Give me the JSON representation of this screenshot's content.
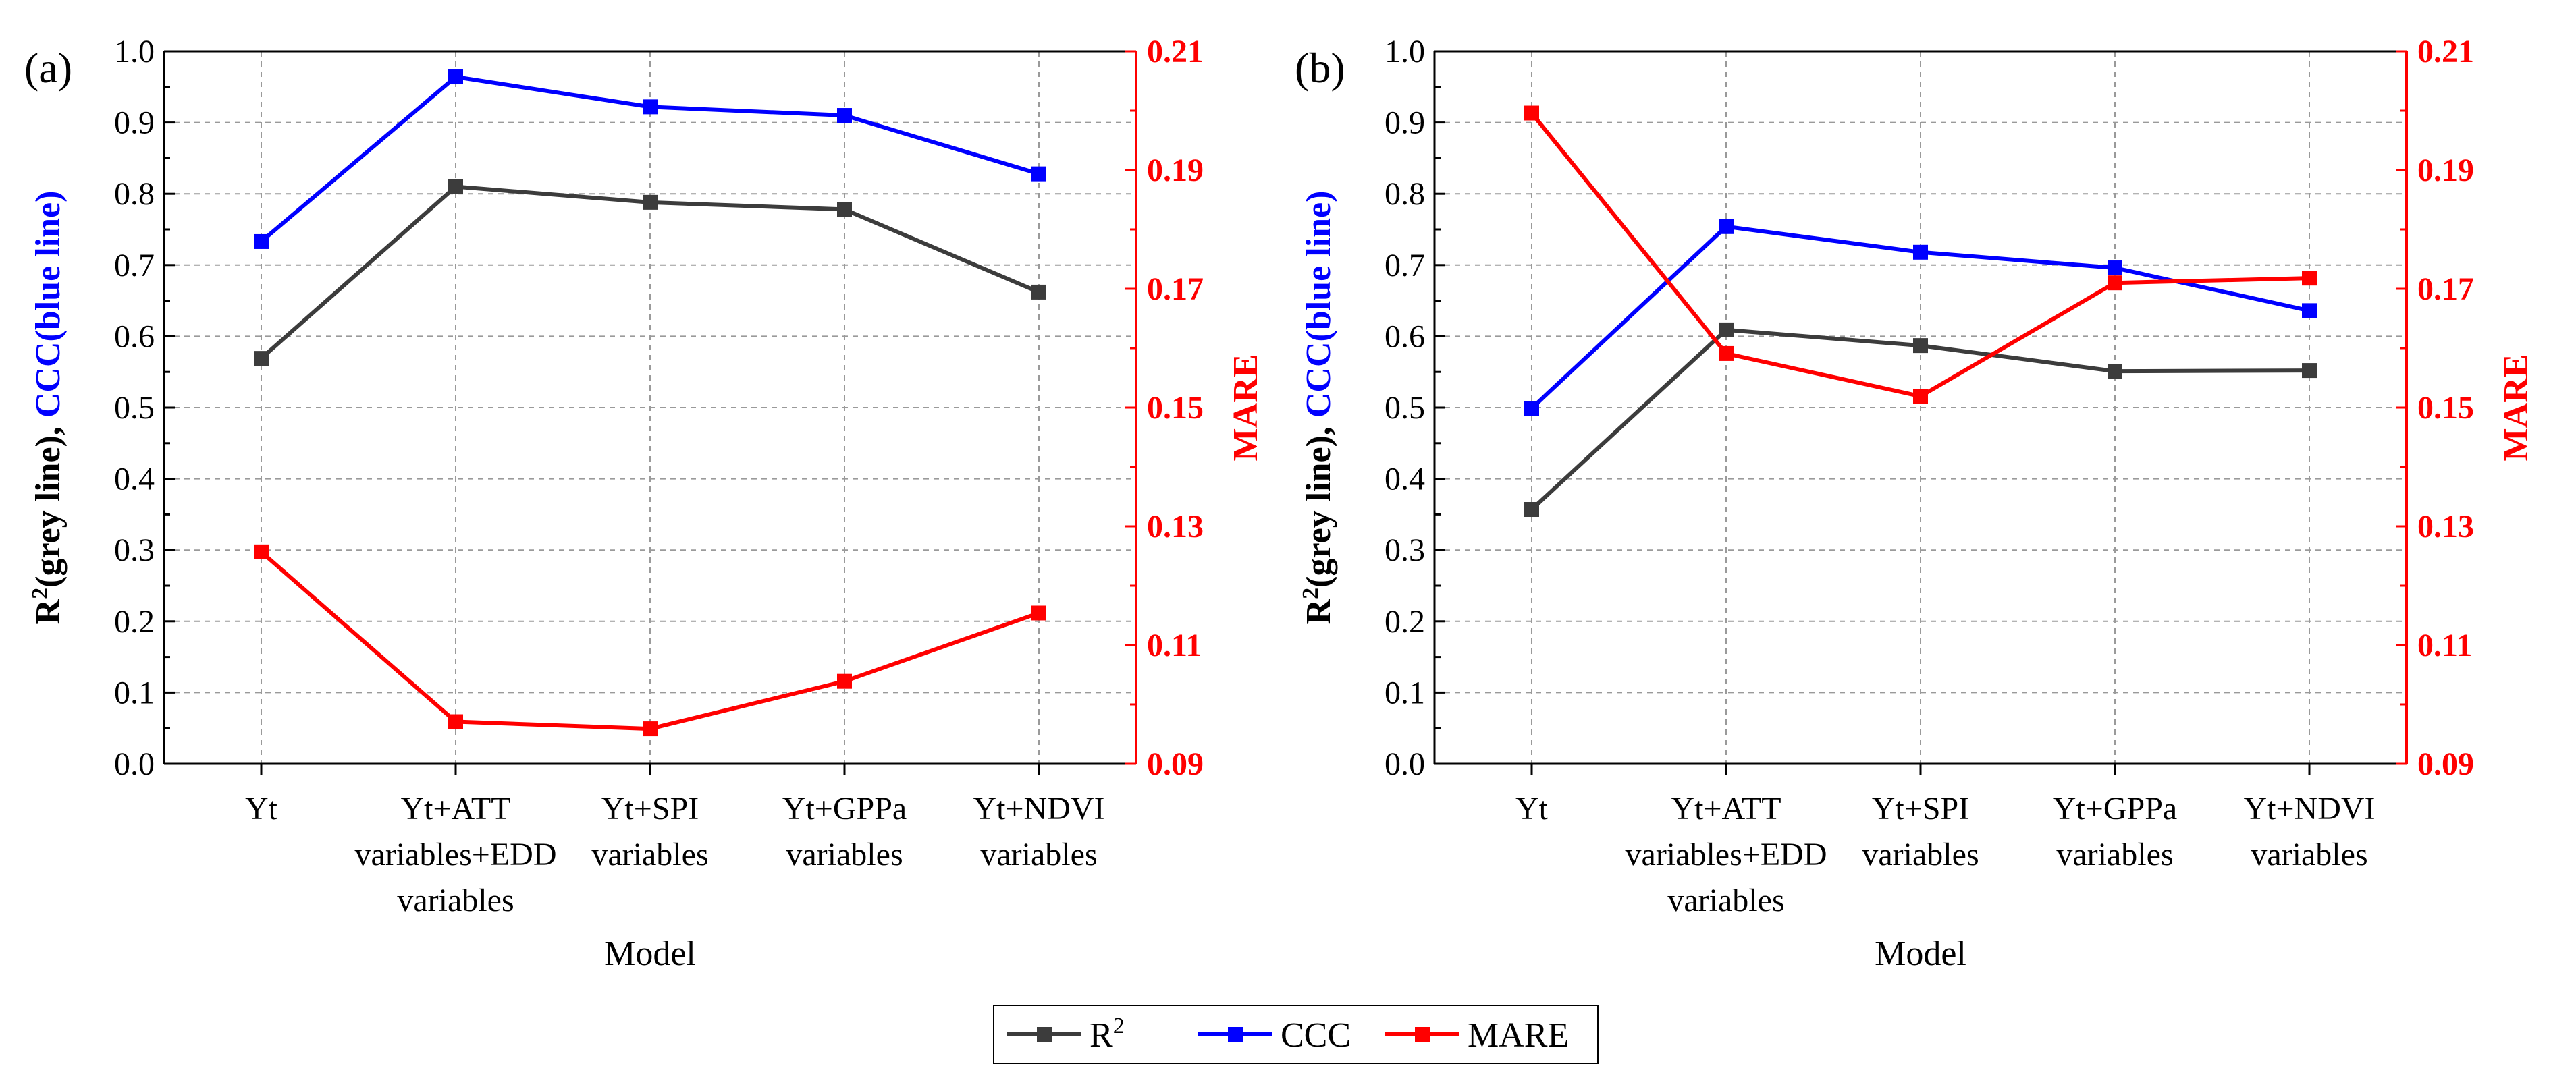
{
  "colors": {
    "r2": "#3c3c3c",
    "ccc": "#0000ff",
    "mare": "#ff0000",
    "grid": "#9a9a9a"
  },
  "legend": [
    {
      "key": "r2",
      "label": "R",
      "sup": "2"
    },
    {
      "key": "ccc",
      "label": "CCC",
      "sup": ""
    },
    {
      "key": "mare",
      "label": "MARE",
      "sup": ""
    }
  ],
  "chart_data": [
    {
      "type": "line",
      "panel_label": "(a)",
      "xlabel": "Model",
      "ylabel_parts": [
        "R",
        "2",
        "(grey line), ",
        "CCC(blue line)"
      ],
      "y2label": "MARE",
      "categories": [
        [
          "Yt"
        ],
        [
          "Yt+ATT",
          "variables+EDD",
          "variables"
        ],
        [
          "Yt+SPI",
          "variables"
        ],
        [
          "Yt+GPPa",
          "variables"
        ],
        [
          "Yt+NDVI",
          "variables"
        ]
      ],
      "ylim": [
        0,
        1.0
      ],
      "yticks": [
        "0.0",
        "0.1",
        "0.2",
        "0.3",
        "0.4",
        "0.5",
        "0.6",
        "0.7",
        "0.8",
        "0.9",
        "1.0"
      ],
      "y2lim": [
        0.09,
        0.21
      ],
      "y2ticks": [
        "0.09",
        "0.11",
        "0.13",
        "0.15",
        "0.17",
        "0.19",
        "0.21"
      ],
      "series": [
        {
          "name": "R2",
          "key": "r2",
          "axis": "left",
          "values": [
            0.569,
            0.81,
            0.788,
            0.778,
            0.662
          ]
        },
        {
          "name": "CCC",
          "key": "ccc",
          "axis": "left",
          "values": [
            0.733,
            0.964,
            0.922,
            0.91,
            0.828
          ]
        },
        {
          "name": "MARE",
          "key": "mare",
          "axis": "right",
          "values": [
            0.1257,
            0.0971,
            0.0959,
            0.1039,
            0.1154
          ]
        }
      ]
    },
    {
      "type": "line",
      "panel_label": "(b)",
      "xlabel": "Model",
      "ylabel_parts": [
        "R",
        "2",
        "(grey line), ",
        "CCC(blue line)"
      ],
      "y2label": "MARE",
      "categories": [
        [
          "Yt"
        ],
        [
          "Yt+ATT",
          "variables+EDD",
          "variables"
        ],
        [
          "Yt+SPI",
          "variables"
        ],
        [
          "Yt+GPPa",
          "variables"
        ],
        [
          "Yt+NDVI",
          "variables"
        ]
      ],
      "ylim": [
        0,
        1.0
      ],
      "yticks": [
        "0.0",
        "0.1",
        "0.2",
        "0.3",
        "0.4",
        "0.5",
        "0.6",
        "0.7",
        "0.8",
        "0.9",
        "1.0"
      ],
      "y2lim": [
        0.09,
        0.21
      ],
      "y2ticks": [
        "0.09",
        "0.11",
        "0.13",
        "0.15",
        "0.17",
        "0.19",
        "0.21"
      ],
      "series": [
        {
          "name": "R2",
          "key": "r2",
          "axis": "left",
          "values": [
            0.357,
            0.609,
            0.587,
            0.551,
            0.552
          ]
        },
        {
          "name": "CCC",
          "key": "ccc",
          "axis": "left",
          "values": [
            0.499,
            0.754,
            0.718,
            0.696,
            0.636
          ]
        },
        {
          "name": "MARE",
          "key": "mare",
          "axis": "right",
          "values": [
            0.1996,
            0.1591,
            0.1519,
            0.171,
            0.1718
          ]
        }
      ]
    }
  ]
}
